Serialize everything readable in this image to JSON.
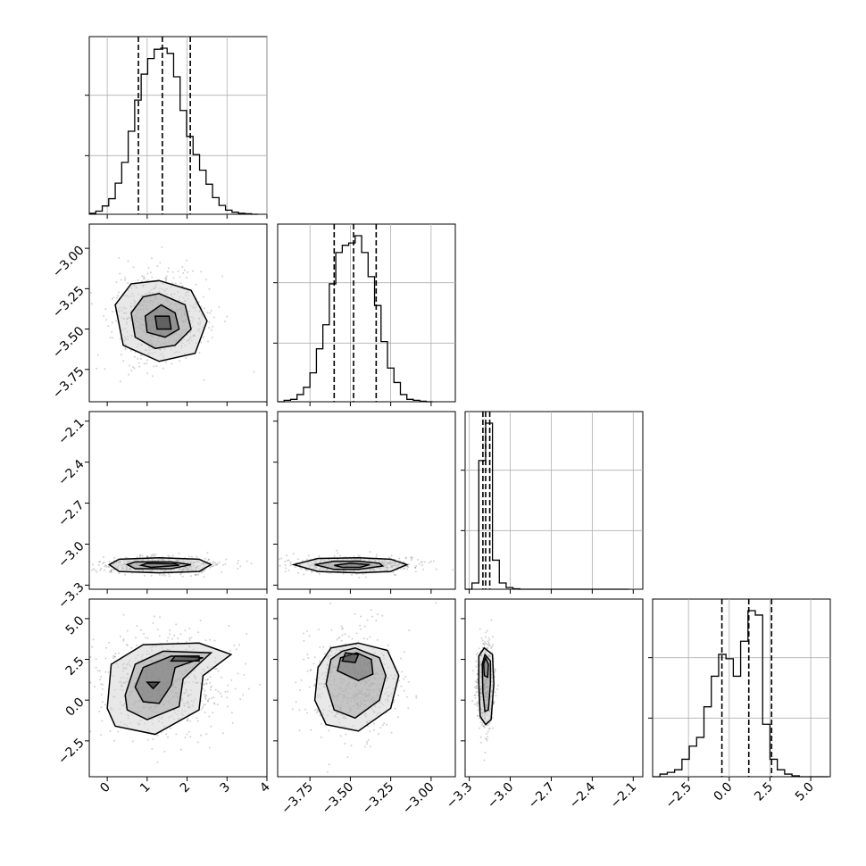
{
  "chart_data": {
    "type": "corner",
    "grid": true,
    "parameters": [
      {
        "range": [
          -0.45,
          4.0
        ],
        "ticks": [
          {
            "v": 0,
            "label": "0"
          },
          {
            "v": 1,
            "label": "1"
          },
          {
            "v": 2,
            "label": "2"
          },
          {
            "v": 3,
            "label": "3"
          },
          {
            "v": 4,
            "label": "4"
          }
        ],
        "quantiles": [
          0.78,
          1.38,
          2.08
        ]
      },
      {
        "range": [
          -3.95,
          -2.85
        ],
        "ticks": [
          {
            "v": -3.75,
            "label": "−3.75"
          },
          {
            "v": -3.5,
            "label": "−3.50"
          },
          {
            "v": -3.25,
            "label": "−3.25"
          },
          {
            "v": -3.0,
            "label": "−3.00"
          }
        ],
        "quantiles": [
          -3.6,
          -3.48,
          -3.34
        ]
      },
      {
        "range": [
          -3.33,
          -2.03
        ],
        "ticks": [
          {
            "v": -3.3,
            "label": "−3.3"
          },
          {
            "v": -3.0,
            "label": "−3.0"
          },
          {
            "v": -2.7,
            "label": "−2.7"
          },
          {
            "v": -2.4,
            "label": "−2.4"
          },
          {
            "v": -2.1,
            "label": "−2.1"
          }
        ],
        "quantiles": [
          -3.2,
          -3.18,
          -3.15
        ]
      },
      {
        "range": [
          -4.7,
          6.2
        ],
        "ticks": [
          {
            "v": -2.5,
            "label": "−2.5"
          },
          {
            "v": 0.0,
            "label": "0.0"
          },
          {
            "v": 2.5,
            "label": "2.5"
          },
          {
            "v": 5.0,
            "label": "5.0"
          }
        ],
        "quantiles": [
          -0.45,
          1.2,
          2.6
        ]
      }
    ],
    "histograms": [
      {
        "edges_start": -0.45,
        "bin_width": 0.1625,
        "counts": [
          2,
          6,
          16,
          30,
          60,
          100,
          160,
          220,
          270,
          300,
          318,
          320,
          310,
          265,
          200,
          150,
          115,
          85,
          58,
          32,
          17,
          8,
          4,
          2,
          1,
          0
        ]
      },
      {
        "edges_start": -3.95,
        "bin_width": 0.04,
        "counts": [
          0,
          3,
          5,
          15,
          30,
          60,
          110,
          160,
          245,
          310,
          325,
          330,
          345,
          310,
          260,
          200,
          125,
          70,
          40,
          15,
          5,
          3,
          1,
          0
        ]
      },
      {
        "edges_start": -3.33,
        "bin_width": 0.05,
        "counts": [
          0,
          15,
          310,
          400,
          70,
          15,
          4,
          1,
          0,
          0,
          0,
          0,
          0,
          0,
          0,
          0,
          0,
          0,
          0,
          0,
          0,
          0,
          0,
          0
        ]
      },
      {
        "edges_start": -4.7,
        "bin_width": 0.45,
        "counts": [
          0,
          3,
          5,
          8,
          20,
          35,
          45,
          80,
          115,
          140,
          135,
          115,
          155,
          190,
          185,
          60,
          20,
          8,
          3,
          1,
          0,
          0,
          0,
          0
        ]
      }
    ],
    "pairs": [
      {
        "x": 0,
        "y": 1,
        "contours": [
          [
            [
              1.3,
              -3.2
            ],
            [
              2.1,
              -3.26
            ],
            [
              2.5,
              -3.45
            ],
            [
              2.2,
              -3.65
            ],
            [
              1.3,
              -3.7
            ],
            [
              0.4,
              -3.6
            ],
            [
              0.2,
              -3.35
            ],
            [
              0.6,
              -3.22
            ]
          ],
          [
            [
              1.3,
              -3.28
            ],
            [
              1.95,
              -3.35
            ],
            [
              2.1,
              -3.5
            ],
            [
              1.7,
              -3.6
            ],
            [
              1.2,
              -3.62
            ],
            [
              0.7,
              -3.55
            ],
            [
              0.6,
              -3.4
            ],
            [
              0.9,
              -3.3
            ]
          ],
          [
            [
              1.35,
              -3.35
            ],
            [
              1.7,
              -3.4
            ],
            [
              1.8,
              -3.5
            ],
            [
              1.45,
              -3.55
            ],
            [
              1.0,
              -3.52
            ],
            [
              0.95,
              -3.42
            ]
          ],
          [
            [
              1.2,
              -3.42
            ],
            [
              1.55,
              -3.42
            ],
            [
              1.6,
              -3.5
            ],
            [
              1.25,
              -3.5
            ]
          ]
        ]
      },
      {
        "x": 0,
        "y": 2,
        "contours": [
          [
            [
              0.3,
              -3.11
            ],
            [
              1.3,
              -3.1
            ],
            [
              2.3,
              -3.11
            ],
            [
              2.6,
              -3.15
            ],
            [
              2.3,
              -3.2
            ],
            [
              1.3,
              -3.21
            ],
            [
              0.3,
              -3.2
            ],
            [
              0.05,
              -3.15
            ]
          ],
          [
            [
              0.7,
              -3.13
            ],
            [
              1.6,
              -3.13
            ],
            [
              2.1,
              -3.15
            ],
            [
              1.6,
              -3.18
            ],
            [
              0.7,
              -3.18
            ],
            [
              0.5,
              -3.15
            ]
          ],
          [
            [
              1.0,
              -3.14
            ],
            [
              1.7,
              -3.145
            ],
            [
              1.8,
              -3.155
            ],
            [
              1.1,
              -3.17
            ],
            [
              0.85,
              -3.155
            ]
          ]
        ]
      },
      {
        "x": 0,
        "y": 3,
        "contours": [
          [
            [
              0.0,
              -0.5
            ],
            [
              0.1,
              2.2
            ],
            [
              0.9,
              3.4
            ],
            [
              2.3,
              3.5
            ],
            [
              3.1,
              2.8
            ],
            [
              2.4,
              1.5
            ],
            [
              2.3,
              -0.6
            ],
            [
              1.2,
              -2.1
            ],
            [
              0.2,
              -1.6
            ]
          ],
          [
            [
              0.45,
              0.3
            ],
            [
              0.7,
              2.2
            ],
            [
              1.4,
              3.0
            ],
            [
              2.6,
              2.9
            ],
            [
              2.2,
              2.0
            ],
            [
              1.9,
              1.3
            ],
            [
              1.8,
              -0.4
            ],
            [
              1.0,
              -1.2
            ],
            [
              0.5,
              -0.6
            ]
          ],
          [
            [
              0.7,
              0.8
            ],
            [
              0.9,
              2.0
            ],
            [
              1.6,
              2.7
            ],
            [
              2.4,
              2.6
            ],
            [
              1.7,
              2.0
            ],
            [
              1.6,
              0.9
            ],
            [
              1.3,
              -0.2
            ],
            [
              0.9,
              -0.1
            ]
          ],
          [
            [
              1.6,
              2.4
            ],
            [
              2.3,
              2.4
            ],
            [
              2.3,
              2.7
            ],
            [
              1.7,
              2.7
            ]
          ],
          [
            [
              1.0,
              1.1
            ],
            [
              1.3,
              1.1
            ],
            [
              1.15,
              0.7
            ]
          ]
        ]
      },
      {
        "x": 1,
        "y": 2,
        "contours": [
          [
            [
              -3.85,
              -3.15
            ],
            [
              -3.7,
              -3.105
            ],
            [
              -3.45,
              -3.1
            ],
            [
              -3.25,
              -3.11
            ],
            [
              -3.15,
              -3.15
            ],
            [
              -3.25,
              -3.2
            ],
            [
              -3.45,
              -3.21
            ],
            [
              -3.7,
              -3.2
            ]
          ],
          [
            [
              -3.72,
              -3.15
            ],
            [
              -3.6,
              -3.125
            ],
            [
              -3.45,
              -3.125
            ],
            [
              -3.32,
              -3.14
            ],
            [
              -3.3,
              -3.16
            ],
            [
              -3.45,
              -3.185
            ],
            [
              -3.6,
              -3.185
            ]
          ],
          [
            [
              -3.6,
              -3.155
            ],
            [
              -3.5,
              -3.14
            ],
            [
              -3.38,
              -3.15
            ],
            [
              -3.44,
              -3.17
            ],
            [
              -3.55,
              -3.17
            ]
          ]
        ]
      },
      {
        "x": 1,
        "y": 3,
        "contours": [
          [
            [
              -3.45,
              3.5
            ],
            [
              -3.27,
              3.05
            ],
            [
              -3.2,
              1.5
            ],
            [
              -3.25,
              -0.5
            ],
            [
              -3.45,
              -1.9
            ],
            [
              -3.65,
              -1.5
            ],
            [
              -3.72,
              0.0
            ],
            [
              -3.7,
              2.0
            ],
            [
              -3.62,
              3.2
            ]
          ],
          [
            [
              -3.47,
              3.2
            ],
            [
              -3.32,
              2.6
            ],
            [
              -3.28,
              1.5
            ],
            [
              -3.32,
              0.0
            ],
            [
              -3.47,
              -1.1
            ],
            [
              -3.6,
              -0.6
            ],
            [
              -3.65,
              1.0
            ],
            [
              -3.62,
              2.5
            ],
            [
              -3.55,
              3.0
            ]
          ],
          [
            [
              -3.46,
              2.9
            ],
            [
              -3.37,
              2.5
            ],
            [
              -3.36,
              1.6
            ],
            [
              -3.45,
              1.2
            ],
            [
              -3.58,
              1.8
            ],
            [
              -3.56,
              2.6
            ]
          ],
          [
            [
              -3.55,
              2.4
            ],
            [
              -3.47,
              2.3
            ],
            [
              -3.45,
              2.8
            ],
            [
              -3.53,
              2.9
            ]
          ]
        ]
      },
      {
        "x": 2,
        "y": 3,
        "contours": [
          [
            [
              -3.19,
              3.2
            ],
            [
              -3.13,
              2.8
            ],
            [
              -3.12,
              1.0
            ],
            [
              -3.14,
              -1.2
            ],
            [
              -3.18,
              -1.5
            ],
            [
              -3.22,
              -1.0
            ],
            [
              -3.23,
              1.0
            ],
            [
              -3.23,
              2.7
            ]
          ],
          [
            [
              -3.185,
              2.8
            ],
            [
              -3.145,
              2.4
            ],
            [
              -3.145,
              1.0
            ],
            [
              -3.16,
              -0.6
            ],
            [
              -3.185,
              -0.7
            ],
            [
              -3.2,
              0.5
            ],
            [
              -3.205,
              2.2
            ]
          ],
          [
            [
              -3.18,
              2.6
            ],
            [
              -3.16,
              2.2
            ],
            [
              -3.165,
              1.4
            ],
            [
              -3.19,
              1.5
            ],
            [
              -3.195,
              2.2
            ]
          ]
        ]
      }
    ]
  }
}
